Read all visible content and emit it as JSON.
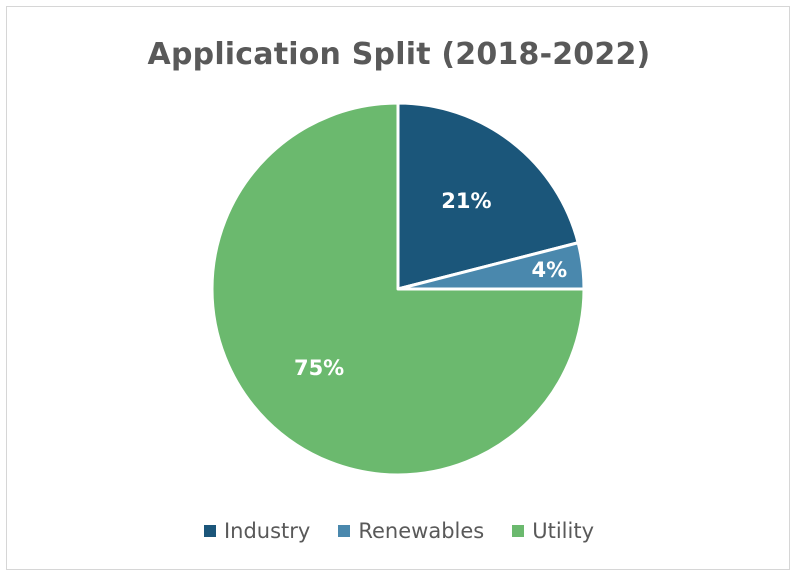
{
  "chart_data": {
    "type": "pie",
    "title": "Application Split (2018-2022)",
    "categories": [
      "Industry",
      "Renewables",
      "Utility"
    ],
    "values": [
      21,
      4,
      75
    ],
    "labels": [
      "21%",
      "4%",
      "75%"
    ],
    "colors": [
      "#1b567a",
      "#4a88ad",
      "#6bb96e"
    ],
    "legend_position": "bottom"
  }
}
